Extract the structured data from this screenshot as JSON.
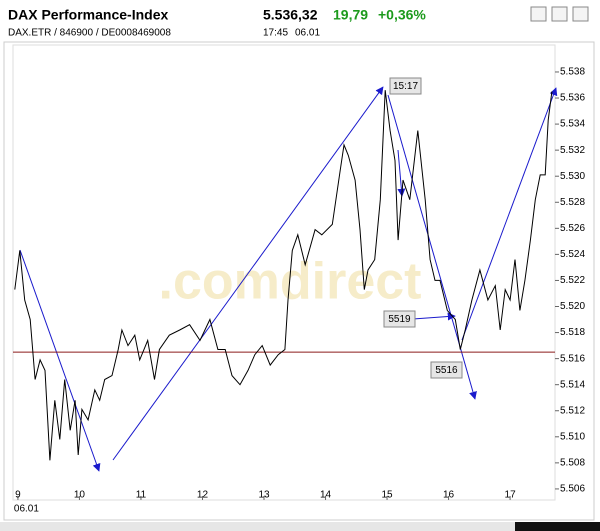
{
  "header": {
    "title": "DAX Performance-Index",
    "price": "5.536,32",
    "change": "19,79",
    "change_pct": "+0,36%",
    "ids": "DAX.ETR / 846900 / DE0008469008",
    "time": "17:45",
    "date": "06.01"
  },
  "chart_data": {
    "type": "line",
    "watermark": ".comdirect",
    "date_label": "06.01",
    "series": [
      {
        "name": "DAX",
        "color": "#000000",
        "x": [
          8.95,
          9.03,
          9.11,
          9.2,
          9.28,
          9.36,
          9.44,
          9.52,
          9.6,
          9.68,
          9.76,
          9.85,
          9.93,
          9.98,
          10.04,
          10.14,
          10.25,
          10.33,
          10.41,
          10.53,
          10.63,
          10.69,
          10.79,
          10.9,
          10.98,
          11.11,
          11.22,
          11.3,
          11.46,
          11.63,
          11.79,
          11.96,
          12.12,
          12.25,
          12.37,
          12.48,
          12.61,
          12.74,
          12.85,
          12.97,
          13.1,
          13.23,
          13.34,
          13.39,
          13.46,
          13.55,
          13.67,
          13.83,
          13.94,
          14.11,
          14.24,
          14.3,
          14.37,
          14.48,
          14.56,
          14.63,
          14.69,
          14.8,
          14.89,
          14.97,
          15.05,
          15.13,
          15.18,
          15.26,
          15.37,
          15.5,
          15.62,
          15.7,
          15.78,
          15.86,
          15.98,
          16.11,
          16.19,
          16.27,
          16.38,
          16.51,
          16.64,
          16.76,
          16.84,
          16.92,
          17.0,
          17.08,
          17.16,
          17.24,
          17.33,
          17.41,
          17.49,
          17.57,
          17.62,
          17.68
        ],
        "values": [
          5521.3,
          5524.3,
          5520.5,
          5519.0,
          5514.4,
          5515.9,
          5515.1,
          5508.2,
          5512.8,
          5509.8,
          5514.4,
          5510.5,
          5512.8,
          5508.6,
          5512.1,
          5511.3,
          5513.6,
          5512.8,
          5514.4,
          5514.7,
          5516.7,
          5518.2,
          5517.0,
          5517.8,
          5515.9,
          5517.4,
          5514.4,
          5516.7,
          5517.8,
          5518.2,
          5518.6,
          5517.4,
          5519.0,
          5516.7,
          5516.7,
          5514.7,
          5514.0,
          5515.1,
          5516.3,
          5517.0,
          5515.5,
          5516.3,
          5516.7,
          5520.5,
          5524.3,
          5525.5,
          5523.2,
          5525.9,
          5525.5,
          5526.3,
          5530.5,
          5532.4,
          5531.6,
          5529.7,
          5525.9,
          5521.3,
          5522.8,
          5523.6,
          5528.2,
          5536.6,
          5533.5,
          5531.2,
          5525.1,
          5529.7,
          5528.2,
          5533.5,
          5528.2,
          5523.6,
          5522.0,
          5522.0,
          5519.7,
          5519.0,
          5516.7,
          5518.2,
          5520.5,
          5522.8,
          5520.5,
          5521.6,
          5518.2,
          5521.3,
          5520.5,
          5523.6,
          5519.7,
          5522.0,
          5525.1,
          5528.2,
          5530.1,
          5530.1,
          5534.3,
          5536.5
        ]
      }
    ],
    "reference_line": 5516.5,
    "reference_color": "#8b1a1a",
    "annotations": [
      "15:17",
      "5519",
      "5516"
    ],
    "xlim": [
      8.92,
      17.73
    ],
    "xticks": [
      9,
      10,
      11,
      12,
      13,
      14,
      15,
      16,
      17
    ],
    "ylim": [
      5505.15,
      5540.07
    ],
    "yticks": [
      {
        "value": 5506,
        "label": "5.506"
      },
      {
        "value": 5508,
        "label": "5.508"
      },
      {
        "value": 5510,
        "label": "5.510"
      },
      {
        "value": 5512,
        "label": "5.512"
      },
      {
        "value": 5514,
        "label": "5.514"
      },
      {
        "value": 5516,
        "label": "5.516"
      },
      {
        "value": 5518,
        "label": "5.518"
      },
      {
        "value": 5520,
        "label": "5.520"
      },
      {
        "value": 5522,
        "label": "5.522"
      },
      {
        "value": 5524,
        "label": "5.524"
      },
      {
        "value": 5526,
        "label": "5.526"
      },
      {
        "value": 5528,
        "label": "5.528"
      },
      {
        "value": 5530,
        "label": "5.530"
      },
      {
        "value": 5532,
        "label": "5.532"
      },
      {
        "value": 5534,
        "label": "5.534"
      },
      {
        "value": 5536,
        "label": "5.536"
      },
      {
        "value": 5538,
        "label": "5.538"
      }
    ]
  }
}
